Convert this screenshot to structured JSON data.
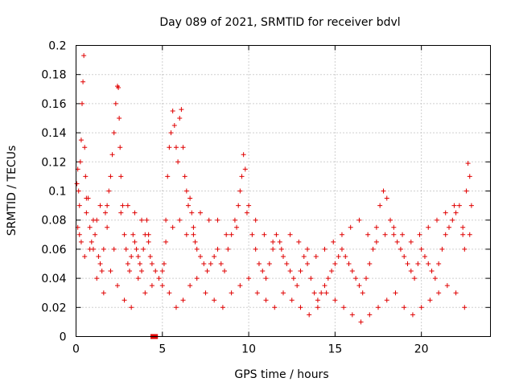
{
  "chart_data": {
    "type": "scatter",
    "title": "Day 089 of 2021, SRMTID for receiver bdvl",
    "xlabel": "GPS time / hours",
    "ylabel": "SRMTID / TECUs",
    "xlim": [
      0,
      24
    ],
    "ylim": [
      0,
      0.2
    ],
    "x_ticks": [
      0,
      5,
      10,
      15,
      20
    ],
    "x_tick_labels": [
      "0",
      "5",
      "10",
      "15",
      "20"
    ],
    "y_ticks": [
      0,
      0.02,
      0.04,
      0.06,
      0.08,
      0.1,
      0.12,
      0.14,
      0.16,
      0.18,
      0.2
    ],
    "y_tick_labels": [
      "0",
      "0.02",
      "0.04",
      "0.06",
      "0.08",
      "0.1",
      "0.12",
      "0.14",
      "0.16",
      "0.18",
      "0.2"
    ],
    "grid": true,
    "marker": "plus",
    "color": "#e00000",
    "series": [
      {
        "name": "SRMTID",
        "x": [
          0.05,
          0.1,
          0.15,
          0.2,
          0.25,
          0.3,
          0.35,
          0.4,
          0.45,
          0.5,
          0.55,
          0.6,
          0.7,
          0.8,
          0.9,
          1.0,
          1.1,
          1.2,
          1.3,
          1.4,
          1.5,
          1.6,
          1.7,
          1.8,
          1.9,
          2.0,
          2.1,
          2.2,
          2.3,
          2.4,
          2.45,
          2.5,
          2.55,
          2.6,
          2.7,
          2.8,
          2.9,
          3.0,
          3.1,
          3.2,
          3.3,
          3.4,
          3.5,
          3.6,
          3.7,
          3.8,
          3.9,
          4.0,
          4.1,
          4.2,
          4.3,
          4.4,
          4.6,
          4.8,
          5.0,
          5.1,
          5.2,
          5.3,
          5.4,
          5.5,
          5.6,
          5.7,
          5.8,
          5.9,
          6.0,
          6.1,
          6.2,
          6.3,
          6.4,
          6.5,
          6.6,
          6.7,
          6.8,
          6.9,
          7.0,
          7.2,
          7.4,
          7.6,
          7.8,
          8.0,
          8.2,
          8.4,
          8.6,
          8.8,
          9.0,
          9.2,
          9.4,
          9.5,
          9.6,
          9.7,
          9.8,
          10.0,
          10.2,
          10.4,
          10.6,
          10.8,
          11.0,
          11.2,
          11.4,
          11.6,
          11.8,
          12.0,
          12.2,
          12.4,
          12.6,
          12.8,
          13.0,
          13.2,
          13.4,
          13.6,
          13.8,
          14.0,
          14.2,
          14.4,
          14.6,
          14.8,
          15.0,
          15.2,
          15.4,
          15.6,
          15.8,
          16.0,
          16.2,
          16.4,
          16.6,
          16.8,
          17.0,
          17.2,
          17.4,
          17.6,
          17.8,
          18.0,
          18.2,
          18.4,
          18.6,
          18.8,
          19.0,
          19.2,
          19.4,
          19.6,
          19.8,
          20.0,
          20.2,
          20.4,
          20.6,
          20.8,
          21.0,
          21.2,
          21.4,
          21.6,
          21.8,
          22.0,
          22.2,
          22.4,
          22.5,
          22.6,
          22.7,
          22.8,
          22.9,
          0.1,
          0.3,
          0.5,
          0.8,
          1.2,
          1.6,
          2.0,
          2.4,
          2.8,
          3.2,
          3.6,
          4.0,
          4.4,
          5.0,
          5.4,
          5.8,
          6.2,
          6.6,
          7.0,
          7.5,
          8.0,
          8.5,
          9.0,
          9.5,
          10.0,
          10.5,
          11.0,
          11.5,
          12.0,
          12.5,
          13.0,
          13.5,
          14.0,
          14.5,
          15.0,
          15.5,
          16.0,
          16.5,
          17.0,
          17.5,
          18.0,
          18.5,
          19.0,
          19.5,
          20.0,
          20.5,
          21.0,
          21.5,
          22.0,
          22.5,
          0.2,
          0.6,
          1.0,
          1.4,
          1.8,
          2.2,
          2.6,
          3.0,
          3.4,
          3.8,
          4.2,
          5.2,
          5.6,
          6.0,
          6.4,
          6.8,
          7.2,
          7.7,
          8.2,
          8.7,
          9.3,
          9.9,
          10.4,
          10.9,
          11.4,
          11.9,
          12.4,
          12.9,
          13.4,
          13.9,
          14.4,
          14.9,
          15.4,
          15.9,
          16.4,
          16.9,
          17.4,
          17.9,
          18.4,
          18.9,
          19.4,
          19.9,
          20.4,
          20.9,
          21.4,
          21.9,
          22.4,
          22.8
        ],
        "y": [
          0.105,
          0.115,
          0.1,
          0.09,
          0.12,
          0.135,
          0.16,
          0.175,
          0.193,
          0.13,
          0.11,
          0.085,
          0.095,
          0.075,
          0.065,
          0.06,
          0.07,
          0.08,
          0.055,
          0.05,
          0.045,
          0.06,
          0.085,
          0.09,
          0.1,
          0.11,
          0.125,
          0.14,
          0.16,
          0.172,
          0.171,
          0.15,
          0.13,
          0.11,
          0.09,
          0.07,
          0.06,
          0.05,
          0.045,
          0.055,
          0.07,
          0.065,
          0.06,
          0.055,
          0.05,
          0.045,
          0.06,
          0.07,
          0.08,
          0.065,
          0.055,
          0.05,
          0.045,
          0.04,
          0.035,
          0.05,
          0.08,
          0.11,
          0.13,
          0.14,
          0.155,
          0.145,
          0.13,
          0.12,
          0.15,
          0.156,
          0.13,
          0.11,
          0.1,
          0.09,
          0.095,
          0.085,
          0.07,
          0.065,
          0.06,
          0.055,
          0.05,
          0.045,
          0.05,
          0.055,
          0.06,
          0.05,
          0.045,
          0.06,
          0.07,
          0.08,
          0.09,
          0.1,
          0.11,
          0.125,
          0.115,
          0.09,
          0.07,
          0.06,
          0.05,
          0.045,
          0.04,
          0.05,
          0.06,
          0.07,
          0.065,
          0.055,
          0.05,
          0.045,
          0.04,
          0.035,
          0.045,
          0.055,
          0.05,
          0.04,
          0.03,
          0.025,
          0.03,
          0.035,
          0.04,
          0.045,
          0.05,
          0.055,
          0.06,
          0.055,
          0.05,
          0.045,
          0.04,
          0.035,
          0.03,
          0.04,
          0.05,
          0.06,
          0.075,
          0.09,
          0.1,
          0.095,
          0.08,
          0.07,
          0.065,
          0.06,
          0.055,
          0.05,
          0.045,
          0.04,
          0.05,
          0.06,
          0.055,
          0.05,
          0.045,
          0.04,
          0.05,
          0.06,
          0.07,
          0.075,
          0.08,
          0.085,
          0.09,
          0.07,
          0.06,
          0.1,
          0.119,
          0.11,
          0.09,
          0.075,
          0.065,
          0.055,
          0.06,
          0.04,
          0.03,
          0.045,
          0.035,
          0.025,
          0.02,
          0.04,
          0.03,
          0.035,
          0.045,
          0.03,
          0.02,
          0.025,
          0.035,
          0.04,
          0.03,
          0.025,
          0.02,
          0.03,
          0.035,
          0.04,
          0.03,
          0.025,
          0.02,
          0.03,
          0.025,
          0.02,
          0.015,
          0.02,
          0.03,
          0.025,
          0.02,
          0.015,
          0.01,
          0.015,
          0.02,
          0.025,
          0.03,
          0.02,
          0.015,
          0.02,
          0.025,
          0.03,
          0.035,
          0.03,
          0.02,
          0.07,
          0.095,
          0.08,
          0.09,
          0.075,
          0.06,
          0.085,
          0.09,
          0.085,
          0.08,
          0.07,
          0.065,
          0.075,
          0.08,
          0.07,
          0.075,
          0.085,
          0.08,
          0.08,
          0.07,
          0.075,
          0.085,
          0.08,
          0.07,
          0.065,
          0.06,
          0.07,
          0.065,
          0.06,
          0.055,
          0.06,
          0.065,
          0.07,
          0.075,
          0.08,
          0.07,
          0.065,
          0.07,
          0.075,
          0.07,
          0.065,
          0.07,
          0.075,
          0.08,
          0.085,
          0.09,
          0.075,
          0.07
        ],
        "zero_marks_x": [
          4.45,
          4.6
        ]
      }
    ]
  }
}
